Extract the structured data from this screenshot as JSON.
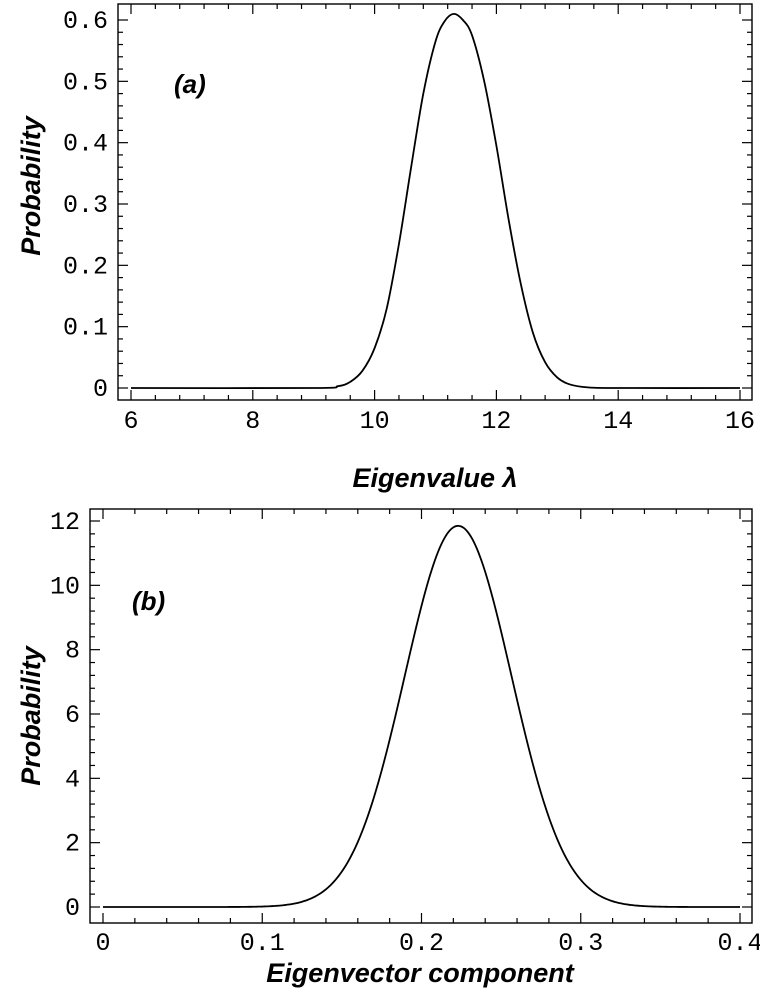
{
  "chart_data": [
    {
      "type": "line",
      "panel_label": "(a)",
      "xlabel": "Eigenvalue λ",
      "ylabel": "Probability",
      "xlim": [
        6,
        16
      ],
      "ylim": [
        0,
        0.6
      ],
      "x_ticks": [
        "6",
        "8",
        "10",
        "12",
        "14",
        "16"
      ],
      "y_ticks": [
        "0",
        "0.1",
        "0.2",
        "0.3",
        "0.4",
        "0.5",
        "0.6"
      ],
      "grid": false,
      "series": [
        {
          "x": [
            6.0,
            9.0,
            9.4,
            9.6,
            9.8,
            10.0,
            10.2,
            10.4,
            10.6,
            10.8,
            11.0,
            11.15,
            11.3,
            11.45,
            11.6,
            11.8,
            12.0,
            12.2,
            12.4,
            12.6,
            12.8,
            13.0,
            13.2,
            13.5,
            14.0,
            16.0
          ],
          "y": [
            0.0,
            0.0,
            0.003,
            0.01,
            0.028,
            0.065,
            0.13,
            0.235,
            0.36,
            0.48,
            0.565,
            0.598,
            0.61,
            0.6,
            0.575,
            0.5,
            0.395,
            0.275,
            0.17,
            0.09,
            0.042,
            0.017,
            0.006,
            0.001,
            0.0,
            0.0
          ]
        }
      ]
    },
    {
      "type": "line",
      "panel_label": "(b)",
      "xlabel": "Eigenvector component",
      "ylabel": "Probability",
      "xlim": [
        0,
        0.4
      ],
      "ylim": [
        0,
        12
      ],
      "x_ticks": [
        "0",
        "0.1",
        "0.2",
        "0.3",
        "0.4"
      ],
      "y_ticks": [
        "0",
        "2",
        "4",
        "6",
        "8",
        "10",
        "12"
      ],
      "grid": false,
      "series": [
        {
          "mean": 0.223,
          "sd": 0.0335,
          "peak": 11.85,
          "x_range": [
            0,
            0.4
          ]
        }
      ]
    }
  ]
}
